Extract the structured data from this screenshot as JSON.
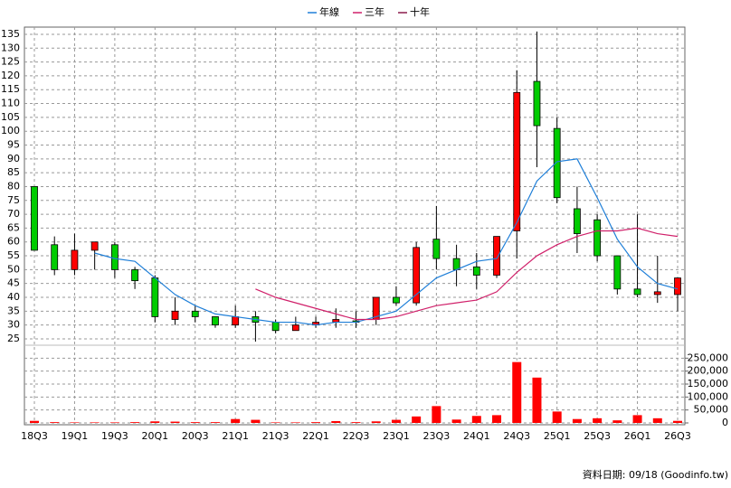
{
  "chart_data": {
    "type": "candlestick",
    "categories": [
      "18Q3",
      null,
      "19Q1",
      null,
      "19Q3",
      null,
      "20Q1",
      null,
      "20Q3",
      null,
      "21Q1",
      null,
      "21Q3",
      null,
      "22Q1",
      null,
      "22Q3",
      null,
      "23Q1",
      null,
      "23Q3",
      null,
      "24Q1",
      null,
      "24Q3",
      null,
      "25Q1",
      null,
      "25Q3",
      null,
      "26Q1",
      null,
      "26Q3"
    ],
    "open": [
      80,
      59,
      50,
      57,
      59,
      50,
      47,
      32,
      35,
      33,
      30,
      33,
      31,
      28,
      30,
      31,
      31.5,
      32,
      40,
      38,
      61,
      54,
      51,
      48,
      64,
      118,
      101,
      72,
      68,
      55,
      43,
      41,
      41
    ],
    "high": [
      80,
      62,
      63,
      60,
      60,
      51,
      48,
      40,
      37,
      33,
      37,
      35,
      32,
      33,
      33,
      36,
      35,
      40,
      44,
      60,
      73,
      59,
      56,
      62,
      122,
      136,
      105,
      80,
      70,
      55,
      70,
      55,
      47
    ],
    "low": [
      57,
      48,
      48,
      50,
      47,
      43,
      31,
      30,
      31,
      29,
      29,
      24,
      27,
      28,
      29,
      29,
      29,
      30,
      37,
      37,
      50,
      44,
      43,
      47,
      54,
      87,
      74,
      56,
      53,
      41,
      40,
      38,
      35
    ],
    "close": [
      57,
      50,
      57,
      60,
      50,
      46,
      33,
      35,
      33,
      30,
      33,
      31,
      28,
      30,
      31,
      32,
      31,
      40,
      38,
      58,
      54,
      50,
      48,
      62,
      114,
      102,
      76,
      63,
      55,
      43,
      41,
      42,
      47
    ],
    "up_color": "#ff0000",
    "down_color": "#00cc00",
    "lines": [
      {
        "name": "年線",
        "color": "#1f7fd8",
        "values": [
          null,
          null,
          null,
          56,
          54,
          53,
          47,
          41,
          37,
          34,
          33,
          32,
          31,
          31,
          30,
          31,
          31,
          33,
          35,
          41,
          47,
          50,
          53,
          54,
          67,
          82,
          89,
          90,
          76,
          61,
          51,
          45,
          43
        ]
      },
      {
        "name": "三年",
        "color": "#d0206a",
        "values": [
          null,
          null,
          null,
          null,
          null,
          null,
          null,
          null,
          null,
          null,
          null,
          43,
          40,
          38,
          36,
          34,
          32,
          32,
          33,
          35,
          37,
          38,
          39,
          42,
          49,
          55,
          59,
          62,
          64,
          64,
          65,
          63,
          62
        ]
      },
      {
        "name": "十年",
        "color": "#8b1a4a",
        "values": [
          null,
          null,
          null,
          null,
          null,
          null,
          null,
          null,
          null,
          null,
          null,
          null,
          null,
          null,
          null,
          null,
          null,
          null,
          null,
          null,
          null,
          null,
          null,
          null,
          null,
          null,
          null,
          null,
          null,
          null,
          null,
          null,
          null
        ]
      }
    ],
    "ylim": [
      22.7,
      137.6
    ],
    "yticks": [
      25,
      30,
      35,
      40,
      45,
      50,
      55,
      60,
      65,
      70,
      75,
      80,
      85,
      90,
      95,
      100,
      105,
      110,
      115,
      120,
      125,
      130,
      135
    ],
    "volume": {
      "color": "#ff0000",
      "values": [
        8000,
        3000,
        2000,
        2000,
        2000,
        3000,
        6000,
        5000,
        3000,
        3000,
        15000,
        12000,
        2000,
        2000,
        3000,
        7000,
        3000,
        6000,
        12000,
        25000,
        65000,
        13000,
        27000,
        30000,
        235000,
        175000,
        44000,
        15000,
        18000,
        10000,
        30000,
        18000,
        8000
      ],
      "ylim": [
        0,
        300000
      ],
      "yticks": [
        0,
        {
          "value": 50000,
          "label": "50,000"
        },
        {
          "value": 100000,
          "label": "100,000"
        },
        {
          "value": 150000,
          "label": "150,000"
        },
        {
          "value": 200000,
          "label": "200,000"
        },
        {
          "value": 250000,
          "label": "250,000"
        }
      ]
    },
    "grid": true,
    "source": "資料日期: 09/18 (Goodinfo.tw)"
  }
}
